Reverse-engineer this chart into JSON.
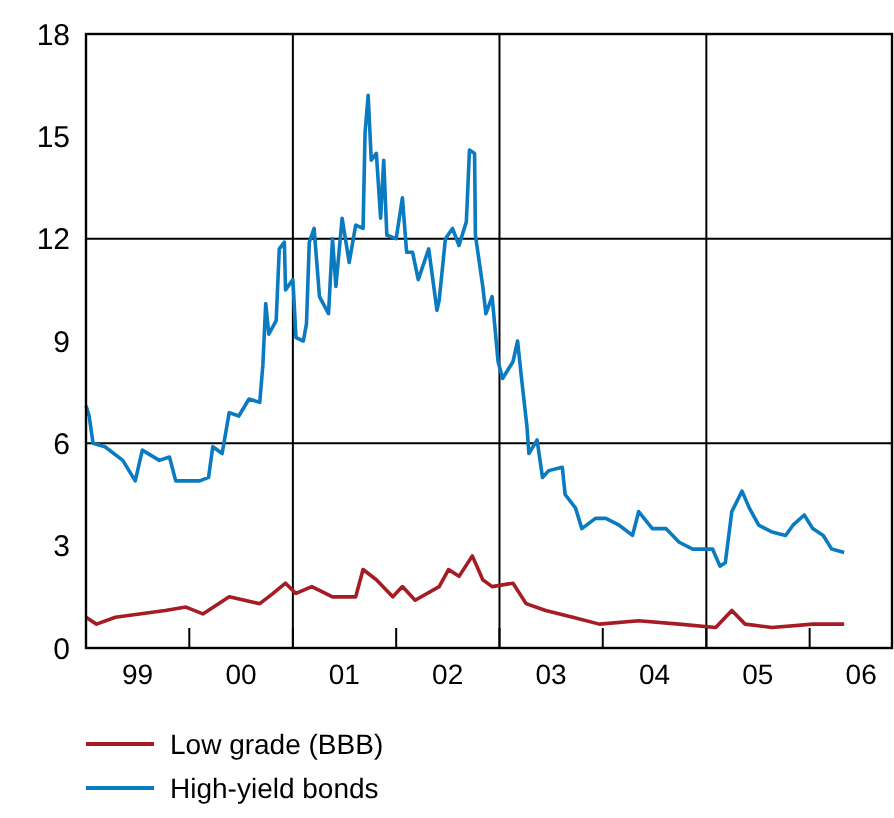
{
  "chart_data": {
    "type": "line",
    "xlim": [
      "1999-01-01",
      "2006-10-19"
    ],
    "xticks": [
      {
        "value": "1999-07-02",
        "label": "99"
      },
      {
        "value": "2000-07-02",
        "label": "00"
      },
      {
        "value": "2001-07-02",
        "label": "01"
      },
      {
        "value": "2002-07-02",
        "label": "02"
      },
      {
        "value": "2003-07-02",
        "label": "03"
      },
      {
        "value": "2004-07-02",
        "label": "04"
      },
      {
        "value": "2005-07-02",
        "label": "05"
      },
      {
        "value": "2006-07-02",
        "label": "06"
      },
      {
        "value": "2000-01-01",
        "label": null
      },
      {
        "value": "2001-01-01",
        "label": null
      },
      {
        "value": "2002-01-01",
        "label": null
      },
      {
        "value": "2003-01-01",
        "label": null
      },
      {
        "value": "2004-01-01",
        "label": null
      },
      {
        "value": "2005-01-01",
        "label": null
      },
      {
        "value": "2006-01-01",
        "label": null
      }
    ],
    "ylim": [
      0,
      18
    ],
    "yticks": [
      0,
      3,
      6,
      9,
      12,
      15,
      18
    ],
    "grid": false,
    "legend": "bottom",
    "line_style": "solid",
    "marker": "none",
    "ref_lines": [
      {
        "axis": "y",
        "value": 6,
        "color": "#000000"
      },
      {
        "axis": "y",
        "value": 12,
        "color": "#000000"
      },
      {
        "axis": "x",
        "value": "2001-01-01",
        "color": "#000000"
      },
      {
        "axis": "x",
        "value": "2003-01-01",
        "color": "#000000"
      },
      {
        "axis": "x",
        "value": "2005-01-01",
        "color": "#000000"
      }
    ],
    "series": [
      {
        "name": "Low grade (BBB)",
        "color": "#a51c24",
        "x": [
          "1999-01-01",
          "1999-02-07",
          "1999-04-15",
          "1999-10-08",
          "1999-12-20",
          "2000-02-18",
          "2000-05-21",
          "2000-09-06",
          "2000-10-23",
          "2000-12-06",
          "2001-01-12",
          "2001-03-09",
          "2001-05-21",
          "2001-08-11",
          "2001-09-06",
          "2001-10-23",
          "2001-12-20",
          "2002-01-23",
          "2002-03-09",
          "2002-06-02",
          "2002-07-05",
          "2002-08-11",
          "2002-09-27",
          "2002-11-03",
          "2002-12-06",
          "2003-02-18",
          "2003-04-05",
          "2003-06-13",
          "2003-09-17",
          "2003-12-20",
          "2004-05-07",
          "2004-09-27",
          "2005-02-03",
          "2005-04-01",
          "2005-05-18",
          "2005-08-21",
          "2006-01-12",
          "2006-05-03"
        ],
        "values": [
          0.9,
          0.7,
          0.9,
          1.1,
          1.2,
          1.0,
          1.5,
          1.3,
          1.6,
          1.9,
          1.6,
          1.8,
          1.5,
          1.5,
          2.3,
          2.0,
          1.5,
          1.8,
          1.4,
          1.8,
          2.3,
          2.1,
          2.7,
          2.0,
          1.8,
          1.9,
          1.3,
          1.1,
          0.9,
          0.7,
          0.8,
          0.7,
          0.6,
          1.1,
          0.7,
          0.6,
          0.7,
          0.7
        ]
      },
      {
        "name": "High-yield bonds",
        "color": "#0b7bc1",
        "x": [
          "1999-01-01",
          "1999-01-12",
          "1999-01-26",
          "1999-03-09",
          "1999-05-11",
          "1999-06-24",
          "1999-07-19",
          "1999-09-17",
          "1999-10-23",
          "1999-11-14",
          "2000-02-07",
          "2000-03-09",
          "2000-03-24",
          "2000-04-26",
          "2000-05-21",
          "2000-06-24",
          "2000-07-30",
          "2000-09-06",
          "2000-09-17",
          "2000-09-27",
          "2000-10-08",
          "2000-11-03",
          "2000-11-14",
          "2000-12-02",
          "2000-12-06",
          "2001-01-01",
          "2001-01-12",
          "2001-02-07",
          "2001-02-18",
          "2001-02-28",
          "2001-03-17",
          "2001-04-05",
          "2001-05-07",
          "2001-05-21",
          "2001-06-02",
          "2001-06-24",
          "2001-07-19",
          "2001-08-11",
          "2001-09-06",
          "2001-09-13",
          "2001-09-24",
          "2001-10-05",
          "2001-10-23",
          "2001-11-07",
          "2001-11-18",
          "2001-11-29",
          "2002-01-01",
          "2002-01-23",
          "2002-02-07",
          "2002-02-28",
          "2002-03-20",
          "2002-04-26",
          "2002-05-25",
          "2002-06-02",
          "2002-06-24",
          "2002-07-19",
          "2002-08-11",
          "2002-09-06",
          "2002-09-17",
          "2002-10-05",
          "2002-10-08",
          "2002-11-03",
          "2002-11-14",
          "2002-12-06",
          "2002-12-27",
          "2003-01-12",
          "2003-02-18",
          "2003-03-06",
          "2003-03-20",
          "2003-04-08",
          "2003-04-15",
          "2003-05-14",
          "2003-06-02",
          "2003-06-24",
          "2003-08-11",
          "2003-08-21",
          "2003-09-27",
          "2003-10-19",
          "2003-12-06",
          "2004-01-12",
          "2004-02-28",
          "2004-04-15",
          "2004-05-07",
          "2004-06-24",
          "2004-08-11",
          "2004-09-27",
          "2004-11-14",
          "2004-12-20",
          "2005-01-23",
          "2005-02-18",
          "2005-03-09",
          "2005-04-01",
          "2005-05-07",
          "2005-06-02",
          "2005-07-05",
          "2005-08-21",
          "2005-10-08",
          "2005-11-03",
          "2005-12-13",
          "2006-01-12",
          "2006-02-18",
          "2006-03-20",
          "2006-05-03"
        ],
        "values": [
          7.1,
          6.8,
          6.0,
          5.9,
          5.5,
          4.9,
          5.8,
          5.5,
          5.6,
          4.9,
          4.9,
          5.0,
          5.9,
          5.7,
          6.9,
          6.8,
          7.3,
          7.2,
          8.3,
          10.1,
          9.2,
          9.6,
          11.7,
          11.9,
          10.5,
          10.8,
          9.1,
          9.0,
          9.5,
          11.9,
          12.3,
          10.3,
          9.8,
          12.0,
          10.6,
          12.6,
          11.3,
          12.4,
          12.3,
          15.1,
          16.2,
          14.3,
          14.5,
          12.6,
          14.3,
          12.1,
          12.0,
          13.2,
          11.6,
          11.6,
          10.8,
          11.7,
          9.9,
          10.2,
          12.0,
          12.3,
          11.8,
          12.5,
          14.6,
          14.5,
          12.1,
          10.6,
          9.8,
          10.3,
          8.4,
          7.9,
          8.4,
          9.0,
          7.9,
          6.5,
          5.7,
          6.1,
          5.0,
          5.2,
          5.3,
          4.5,
          4.1,
          3.5,
          3.8,
          3.8,
          3.6,
          3.3,
          4.0,
          3.5,
          3.5,
          3.1,
          2.9,
          2.9,
          2.9,
          2.4,
          2.5,
          4.0,
          4.6,
          4.1,
          3.6,
          3.4,
          3.3,
          3.6,
          3.9,
          3.5,
          3.3,
          2.9,
          2.8
        ]
      }
    ]
  }
}
